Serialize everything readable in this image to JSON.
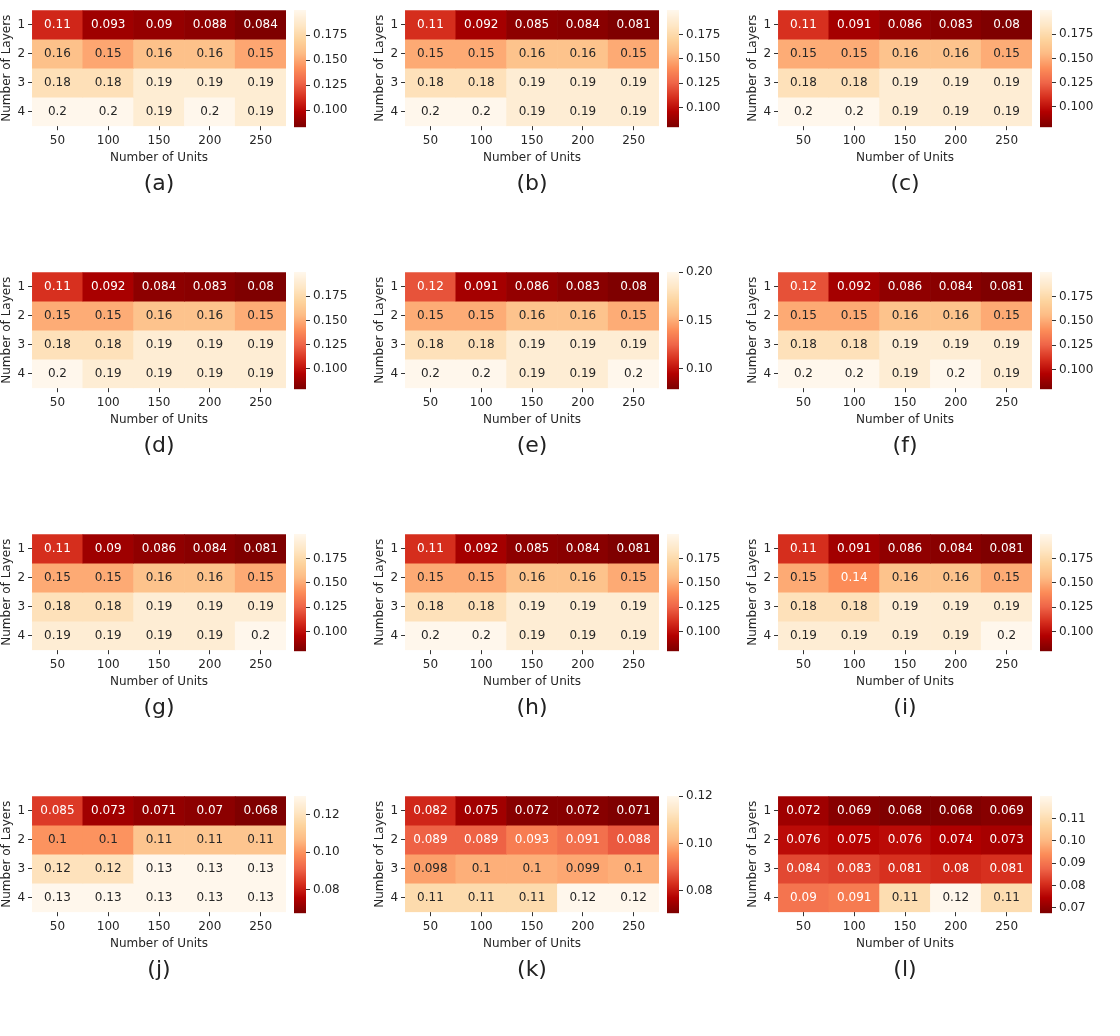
{
  "chart_data": [
    {
      "type": "heatmap",
      "title": "(a)",
      "xlabel": "Number of Units",
      "ylabel": "Number of Layers",
      "categories": [
        "50",
        "100",
        "150",
        "200",
        "250"
      ],
      "y_categories": [
        "1",
        "2",
        "3",
        "4"
      ],
      "data_labels": true,
      "clim": [
        0.084,
        0.2
      ],
      "cticks": [
        {
          "value": 0.1,
          "label": "0.100"
        },
        {
          "value": 0.125,
          "label": "0.125"
        },
        {
          "value": 0.15,
          "label": "0.150"
        },
        {
          "value": 0.175,
          "label": "0.175"
        }
      ],
      "cells": [
        [
          0.11,
          0.093,
          0.09,
          0.088,
          0.084
        ],
        [
          0.16,
          0.15,
          0.16,
          0.16,
          0.15
        ],
        [
          0.18,
          0.18,
          0.19,
          0.19,
          0.19
        ],
        [
          0.2,
          0.2,
          0.19,
          0.2,
          0.19
        ]
      ]
    },
    {
      "type": "heatmap",
      "title": "(b)",
      "xlabel": "Number of Units",
      "ylabel": "Number of Layers",
      "categories": [
        "50",
        "100",
        "150",
        "200",
        "250"
      ],
      "y_categories": [
        "1",
        "2",
        "3",
        "4"
      ],
      "data_labels": true,
      "clim": [
        0.081,
        0.2
      ],
      "cticks": [
        {
          "value": 0.1,
          "label": "0.100"
        },
        {
          "value": 0.125,
          "label": "0.125"
        },
        {
          "value": 0.15,
          "label": "0.150"
        },
        {
          "value": 0.175,
          "label": "0.175"
        }
      ],
      "cells": [
        [
          0.11,
          0.092,
          0.085,
          0.084,
          0.081
        ],
        [
          0.15,
          0.15,
          0.16,
          0.16,
          0.15
        ],
        [
          0.18,
          0.18,
          0.19,
          0.19,
          0.19
        ],
        [
          0.2,
          0.2,
          0.19,
          0.19,
          0.19
        ]
      ]
    },
    {
      "type": "heatmap",
      "title": "(c)",
      "xlabel": "Number of Units",
      "ylabel": "Number of Layers",
      "categories": [
        "50",
        "100",
        "150",
        "200",
        "250"
      ],
      "y_categories": [
        "1",
        "2",
        "3",
        "4"
      ],
      "data_labels": true,
      "clim": [
        0.08,
        0.2
      ],
      "cticks": [
        {
          "value": 0.1,
          "label": "0.100"
        },
        {
          "value": 0.125,
          "label": "0.125"
        },
        {
          "value": 0.15,
          "label": "0.150"
        },
        {
          "value": 0.175,
          "label": "0.175"
        }
      ],
      "cells": [
        [
          0.11,
          0.091,
          0.086,
          0.083,
          0.08
        ],
        [
          0.15,
          0.15,
          0.16,
          0.16,
          0.15
        ],
        [
          0.18,
          0.18,
          0.19,
          0.19,
          0.19
        ],
        [
          0.2,
          0.2,
          0.19,
          0.19,
          0.19
        ]
      ]
    },
    {
      "type": "heatmap",
      "title": "(d)",
      "xlabel": "Number of Units",
      "ylabel": "Number of Layers",
      "categories": [
        "50",
        "100",
        "150",
        "200",
        "250"
      ],
      "y_categories": [
        "1",
        "2",
        "3",
        "4"
      ],
      "data_labels": true,
      "clim": [
        0.08,
        0.2
      ],
      "cticks": [
        {
          "value": 0.1,
          "label": "0.100"
        },
        {
          "value": 0.125,
          "label": "0.125"
        },
        {
          "value": 0.15,
          "label": "0.150"
        },
        {
          "value": 0.175,
          "label": "0.175"
        }
      ],
      "cells": [
        [
          0.11,
          0.092,
          0.084,
          0.083,
          0.08
        ],
        [
          0.15,
          0.15,
          0.16,
          0.16,
          0.15
        ],
        [
          0.18,
          0.18,
          0.19,
          0.19,
          0.19
        ],
        [
          0.2,
          0.19,
          0.19,
          0.19,
          0.19
        ]
      ]
    },
    {
      "type": "heatmap",
      "title": "(e)",
      "xlabel": "Number of Units",
      "ylabel": "Number of Layers",
      "categories": [
        "50",
        "100",
        "150",
        "200",
        "250"
      ],
      "y_categories": [
        "1",
        "2",
        "3",
        "4"
      ],
      "data_labels": true,
      "clim": [
        0.08,
        0.2
      ],
      "cticks": [
        {
          "value": 0.1,
          "label": "0.10"
        },
        {
          "value": 0.15,
          "label": "0.15"
        },
        {
          "value": 0.2,
          "label": "0.20"
        }
      ],
      "cells": [
        [
          0.12,
          0.091,
          0.086,
          0.083,
          0.08
        ],
        [
          0.15,
          0.15,
          0.16,
          0.16,
          0.15
        ],
        [
          0.18,
          0.18,
          0.19,
          0.19,
          0.19
        ],
        [
          0.2,
          0.2,
          0.19,
          0.19,
          0.2
        ]
      ]
    },
    {
      "type": "heatmap",
      "title": "(f)",
      "xlabel": "Number of Units",
      "ylabel": "Number of Layers",
      "categories": [
        "50",
        "100",
        "150",
        "200",
        "250"
      ],
      "y_categories": [
        "1",
        "2",
        "3",
        "4"
      ],
      "data_labels": true,
      "clim": [
        0.081,
        0.2
      ],
      "cticks": [
        {
          "value": 0.1,
          "label": "0.100"
        },
        {
          "value": 0.125,
          "label": "0.125"
        },
        {
          "value": 0.15,
          "label": "0.150"
        },
        {
          "value": 0.175,
          "label": "0.175"
        }
      ],
      "cells": [
        [
          0.12,
          0.092,
          0.086,
          0.084,
          0.081
        ],
        [
          0.15,
          0.15,
          0.16,
          0.16,
          0.15
        ],
        [
          0.18,
          0.18,
          0.19,
          0.19,
          0.19
        ],
        [
          0.2,
          0.2,
          0.19,
          0.2,
          0.19
        ]
      ]
    },
    {
      "type": "heatmap",
      "title": "(g)",
      "xlabel": "Number of Units",
      "ylabel": "Number of Layers",
      "categories": [
        "50",
        "100",
        "150",
        "200",
        "250"
      ],
      "y_categories": [
        "1",
        "2",
        "3",
        "4"
      ],
      "data_labels": true,
      "clim": [
        0.081,
        0.2
      ],
      "cticks": [
        {
          "value": 0.1,
          "label": "0.100"
        },
        {
          "value": 0.125,
          "label": "0.125"
        },
        {
          "value": 0.15,
          "label": "0.150"
        },
        {
          "value": 0.175,
          "label": "0.175"
        }
      ],
      "cells": [
        [
          0.11,
          0.09,
          0.086,
          0.084,
          0.081
        ],
        [
          0.15,
          0.15,
          0.16,
          0.16,
          0.15
        ],
        [
          0.18,
          0.18,
          0.19,
          0.19,
          0.19
        ],
        [
          0.19,
          0.19,
          0.19,
          0.19,
          0.2
        ]
      ]
    },
    {
      "type": "heatmap",
      "title": "(h)",
      "xlabel": "Number of Units",
      "ylabel": "Number of Layers",
      "categories": [
        "50",
        "100",
        "150",
        "200",
        "250"
      ],
      "y_categories": [
        "1",
        "2",
        "3",
        "4"
      ],
      "data_labels": true,
      "clim": [
        0.081,
        0.2
      ],
      "cticks": [
        {
          "value": 0.1,
          "label": "0.100"
        },
        {
          "value": 0.125,
          "label": "0.125"
        },
        {
          "value": 0.15,
          "label": "0.150"
        },
        {
          "value": 0.175,
          "label": "0.175"
        }
      ],
      "cells": [
        [
          0.11,
          0.092,
          0.085,
          0.084,
          0.081
        ],
        [
          0.15,
          0.15,
          0.16,
          0.16,
          0.15
        ],
        [
          0.18,
          0.18,
          0.19,
          0.19,
          0.19
        ],
        [
          0.2,
          0.2,
          0.19,
          0.19,
          0.19
        ]
      ]
    },
    {
      "type": "heatmap",
      "title": "(i)",
      "xlabel": "Number of Units",
      "ylabel": "Number of Layers",
      "categories": [
        "50",
        "100",
        "150",
        "200",
        "250"
      ],
      "y_categories": [
        "1",
        "2",
        "3",
        "4"
      ],
      "data_labels": true,
      "clim": [
        0.081,
        0.2
      ],
      "cticks": [
        {
          "value": 0.1,
          "label": "0.100"
        },
        {
          "value": 0.125,
          "label": "0.125"
        },
        {
          "value": 0.15,
          "label": "0.150"
        },
        {
          "value": 0.175,
          "label": "0.175"
        }
      ],
      "cells": [
        [
          0.11,
          0.091,
          0.086,
          0.084,
          0.081
        ],
        [
          0.15,
          0.14,
          0.16,
          0.16,
          0.15
        ],
        [
          0.18,
          0.18,
          0.19,
          0.19,
          0.19
        ],
        [
          0.19,
          0.19,
          0.19,
          0.19,
          0.2
        ]
      ]
    },
    {
      "type": "heatmap",
      "title": "(j)",
      "xlabel": "Number of Units",
      "ylabel": "Number of Layers",
      "categories": [
        "50",
        "100",
        "150",
        "200",
        "250"
      ],
      "y_categories": [
        "1",
        "2",
        "3",
        "4"
      ],
      "data_labels": true,
      "clim": [
        0.068,
        0.13
      ],
      "cticks": [
        {
          "value": 0.08,
          "label": "0.08"
        },
        {
          "value": 0.1,
          "label": "0.10"
        },
        {
          "value": 0.12,
          "label": "0.12"
        }
      ],
      "cells": [
        [
          0.085,
          0.073,
          0.071,
          0.07,
          0.068
        ],
        [
          0.1,
          0.1,
          0.11,
          0.11,
          0.11
        ],
        [
          0.12,
          0.12,
          0.13,
          0.13,
          0.13
        ],
        [
          0.13,
          0.13,
          0.13,
          0.13,
          0.13
        ]
      ]
    },
    {
      "type": "heatmap",
      "title": "(k)",
      "xlabel": "Number of Units",
      "ylabel": "Number of Layers",
      "categories": [
        "50",
        "100",
        "150",
        "200",
        "250"
      ],
      "y_categories": [
        "1",
        "2",
        "3",
        "4"
      ],
      "data_labels": true,
      "clim": [
        0.071,
        0.12
      ],
      "cticks": [
        {
          "value": 0.08,
          "label": "0.08"
        },
        {
          "value": 0.1,
          "label": "0.10"
        },
        {
          "value": 0.12,
          "label": "0.12"
        }
      ],
      "cells": [
        [
          0.082,
          0.075,
          0.072,
          0.072,
          0.071
        ],
        [
          0.089,
          0.089,
          0.093,
          0.091,
          0.088
        ],
        [
          0.098,
          0.1,
          0.1,
          0.099,
          0.1
        ],
        [
          0.11,
          0.11,
          0.11,
          0.12,
          0.12
        ]
      ]
    },
    {
      "type": "heatmap",
      "title": "(l)",
      "xlabel": "Number of Units",
      "ylabel": "Number of Layers",
      "categories": [
        "50",
        "100",
        "150",
        "200",
        "250"
      ],
      "y_categories": [
        "1",
        "2",
        "3",
        "4"
      ],
      "data_labels": true,
      "clim": [
        0.068,
        0.12
      ],
      "cticks": [
        {
          "value": 0.07,
          "label": "0.07"
        },
        {
          "value": 0.08,
          "label": "0.08"
        },
        {
          "value": 0.09,
          "label": "0.09"
        },
        {
          "value": 0.1,
          "label": "0.10"
        },
        {
          "value": 0.11,
          "label": "0.11"
        }
      ],
      "cells": [
        [
          0.072,
          0.069,
          0.068,
          0.068,
          0.069
        ],
        [
          0.076,
          0.075,
          0.076,
          0.074,
          0.073
        ],
        [
          0.084,
          0.083,
          0.081,
          0.08,
          0.081
        ],
        [
          0.09,
          0.091,
          0.11,
          0.12,
          0.11
        ]
      ]
    }
  ]
}
